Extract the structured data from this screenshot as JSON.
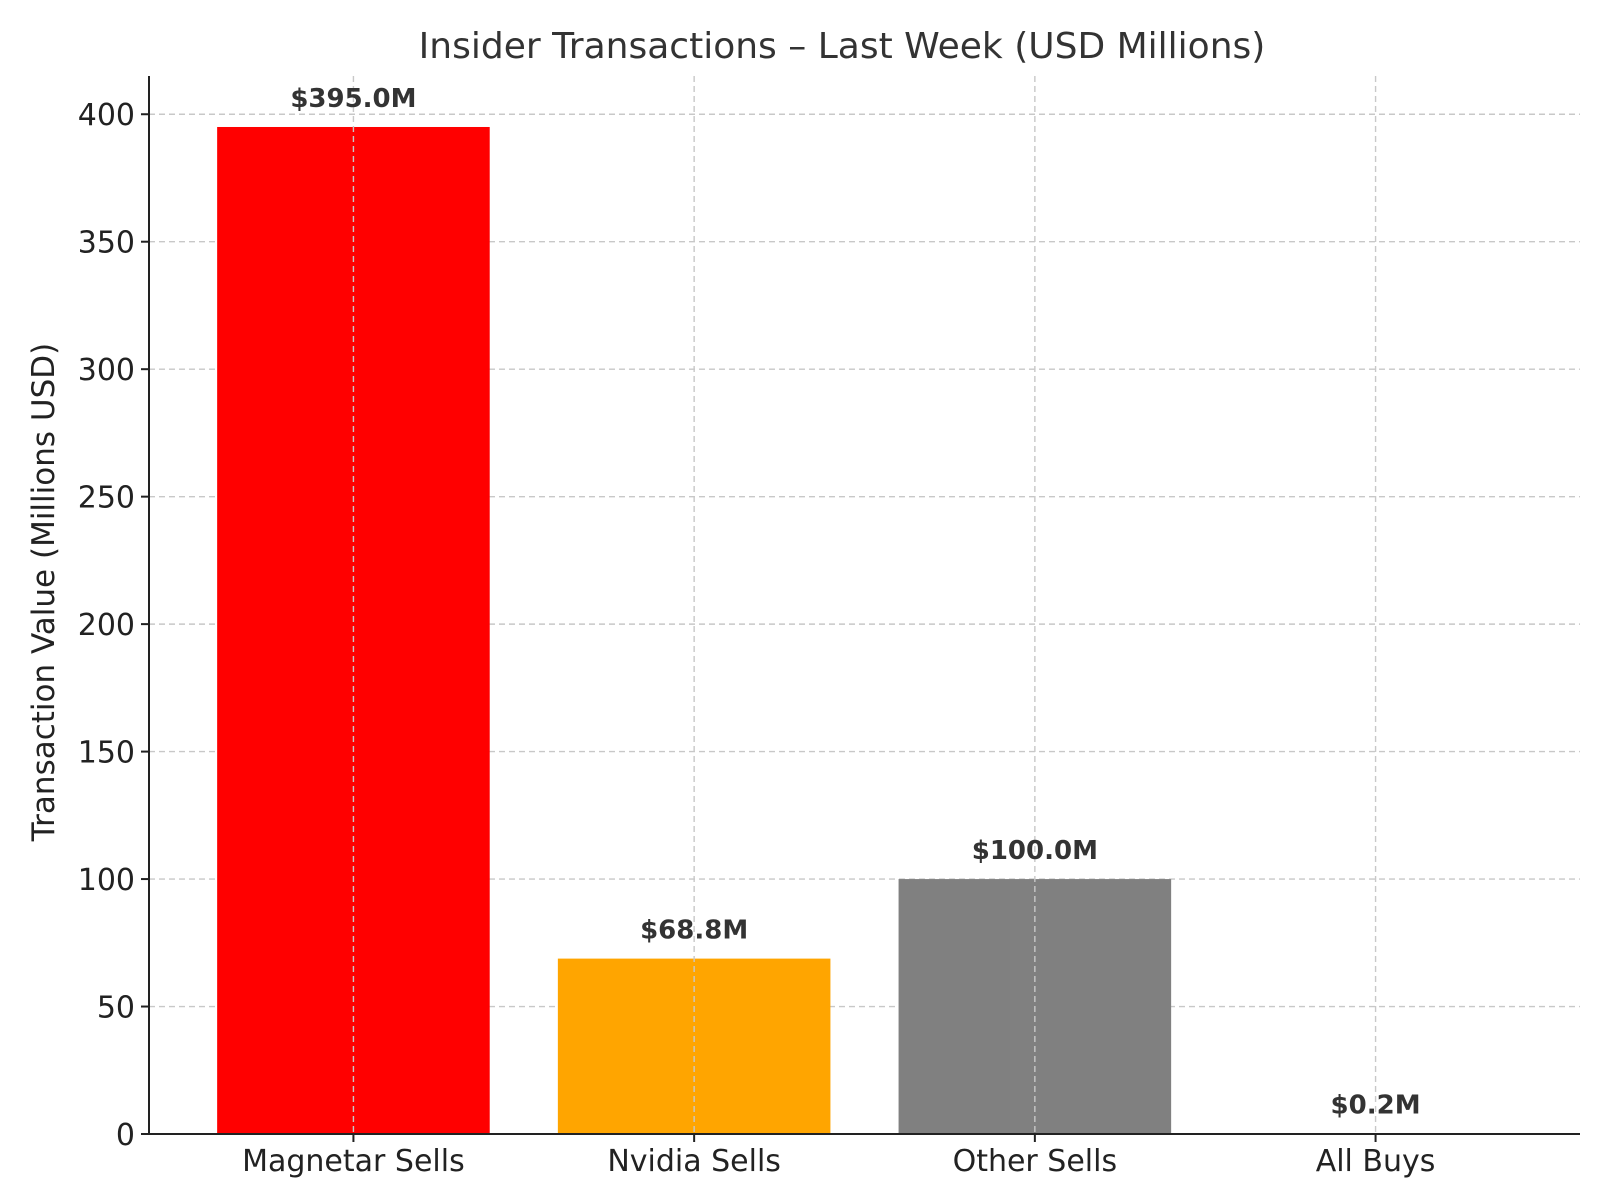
{
  "chart_data": {
    "type": "bar",
    "title": "Insider Transactions – Last Week (USD Millions)",
    "xlabel": "",
    "ylabel": "Transaction Value (Millions USD)",
    "categories": [
      "Magnetar Sells",
      "Nvidia Sells",
      "Other Sells",
      "All Buys"
    ],
    "values": [
      395.0,
      68.8,
      100.0,
      0.2
    ],
    "data_labels": [
      "$395.0M",
      "$68.8M",
      "$100.0M",
      "$0.2M"
    ],
    "colors": [
      "#ff0000",
      "#ffa500",
      "#808080",
      "#008000"
    ],
    "ylim": [
      0,
      415
    ],
    "yticks": [
      0,
      50,
      100,
      150,
      200,
      250,
      300,
      350,
      400
    ],
    "grid": true,
    "legend": "none"
  }
}
